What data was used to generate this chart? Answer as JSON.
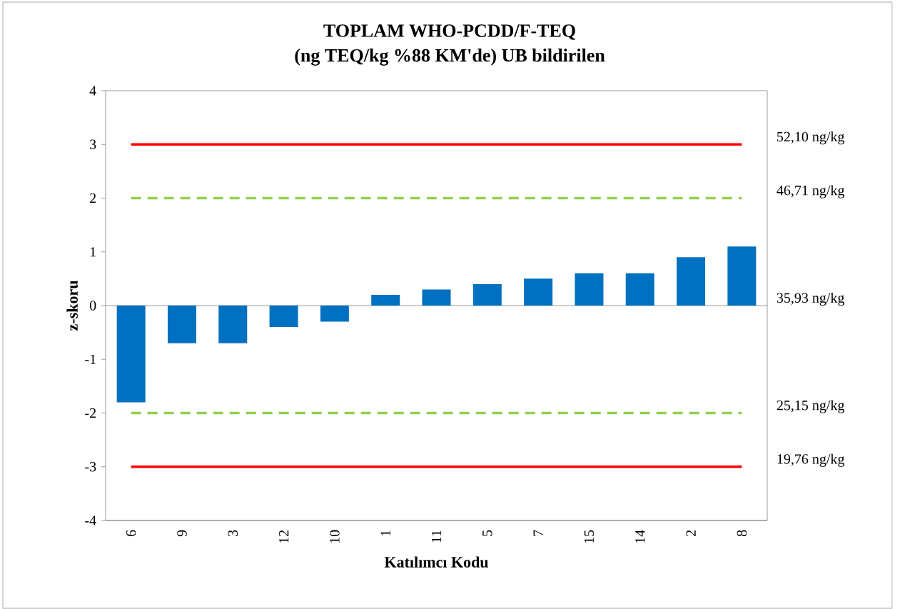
{
  "chart_data": {
    "type": "bar",
    "title": "TOPLAM WHO-PCDD/F-TEQ",
    "subtitle": "(ng TEQ/kg %88 KM'de) UB bildirilen",
    "xlabel": "Katılımcı Kodu",
    "ylabel": "z-skoru",
    "categories": [
      "6",
      "9",
      "3",
      "12",
      "10",
      "1",
      "11",
      "5",
      "7",
      "15",
      "14",
      "2",
      "8"
    ],
    "values": [
      -1.8,
      -0.7,
      -0.7,
      -0.4,
      -0.3,
      0.2,
      0.3,
      0.4,
      0.5,
      0.6,
      0.6,
      0.9,
      1.1
    ],
    "color": "#0070c0",
    "ylim": [
      -4,
      4
    ],
    "yticks": [
      -4,
      -3,
      -2,
      -1,
      0,
      1,
      2,
      3,
      4
    ],
    "y2lim": [
      14.37,
      57.49
    ],
    "y2ticks": [
      {
        "value": 52.1,
        "label": "52,10 ng/kg"
      },
      {
        "value": 46.71,
        "label": "46,71 ng/kg"
      },
      {
        "value": 35.93,
        "label": "35,93 ng/kg"
      },
      {
        "value": 25.15,
        "label": "25,15 ng/kg"
      },
      {
        "value": 19.76,
        "label": "19,76 ng/kg"
      }
    ],
    "ref_lines": [
      {
        "axis": "y",
        "value": 3,
        "color": "#ff0000",
        "line_style": "solid"
      },
      {
        "axis": "y",
        "value": 2,
        "color": "#92d050",
        "line_style": "dashed"
      },
      {
        "axis": "y",
        "value": -2,
        "color": "#92d050",
        "line_style": "dashed"
      },
      {
        "axis": "y",
        "value": -3,
        "color": "#ff0000",
        "line_style": "solid"
      }
    ]
  }
}
